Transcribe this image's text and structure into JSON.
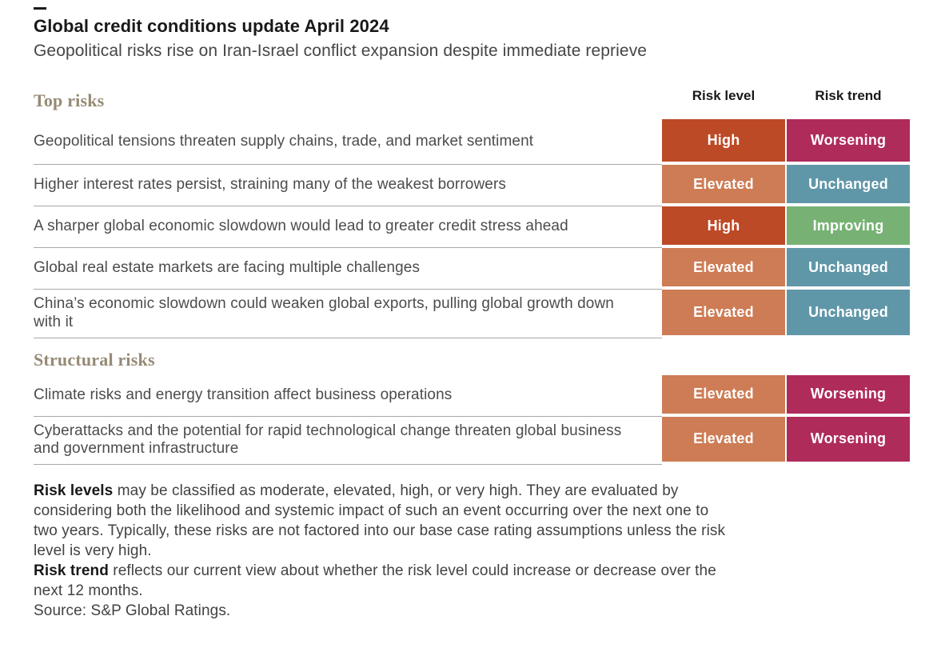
{
  "header": {
    "title": "Global credit conditions update April 2024",
    "subtitle": "Geopolitical risks rise on Iran-Israel conflict expansion despite immediate reprieve"
  },
  "table_headers": {
    "risk_level": "Risk level",
    "risk_trend": "Risk trend"
  },
  "chart_data": {
    "type": "table",
    "title": "Global credit conditions update April 2024",
    "subtitle": "Geopolitical risks rise on Iran-Israel conflict expansion despite immediate reprieve",
    "columns": [
      "Risk",
      "Risk level",
      "Risk trend"
    ],
    "sections": [
      {
        "name": "Top risks",
        "rows": [
          {
            "risk": "Geopolitical tensions threaten supply chains, trade, and market sentiment",
            "risk_level": "High",
            "risk_trend": "Worsening"
          },
          {
            "risk": "Higher interest rates persist, straining many of the weakest borrowers",
            "risk_level": "Elevated",
            "risk_trend": "Unchanged"
          },
          {
            "risk": "A sharper global economic slowdown would lead to greater credit stress ahead",
            "risk_level": "High",
            "risk_trend": "Improving"
          },
          {
            "risk": "Global real estate markets are facing multiple challenges",
            "risk_level": "Elevated",
            "risk_trend": "Unchanged"
          },
          {
            "risk": "China’s economic slowdown could weaken global exports, pulling global growth down with it",
            "risk_level": "Elevated",
            "risk_trend": "Unchanged"
          }
        ]
      },
      {
        "name": "Structural risks",
        "rows": [
          {
            "risk": "Climate risks and energy transition affect business operations",
            "risk_level": "Elevated",
            "risk_trend": "Worsening"
          },
          {
            "risk": "Cyberattacks and the potential for rapid technological change threaten global business and government infrastructure",
            "risk_level": "Elevated",
            "risk_trend": "Worsening"
          }
        ]
      }
    ],
    "risk_level_scale": [
      "moderate",
      "elevated",
      "high",
      "very high"
    ],
    "source": "S&P Global Ratings"
  },
  "colors": {
    "high": "#bc4a26",
    "elevated": "#cd7c55",
    "worsening": "#af2b5a",
    "unchanged": "#6097a8",
    "improving": "#77b274",
    "accent_dash": "#1a1a1a",
    "section_title": "#968a75"
  },
  "footnotes": [
    {
      "bold": "Risk levels",
      "text": " may be classified as moderate, elevated, high, or very high. They are evaluated by considering both the likelihood and systemic impact of such an event occurring over the next one to two years. Typically, these risks are not factored into our base case rating assumptions unless the risk level is very high."
    },
    {
      "bold": "Risk trend",
      "text": " reflects our current view about whether the risk level could increase or decrease over the next 12 months."
    },
    {
      "bold": "",
      "text": "Source: S&P Global Ratings."
    }
  ]
}
